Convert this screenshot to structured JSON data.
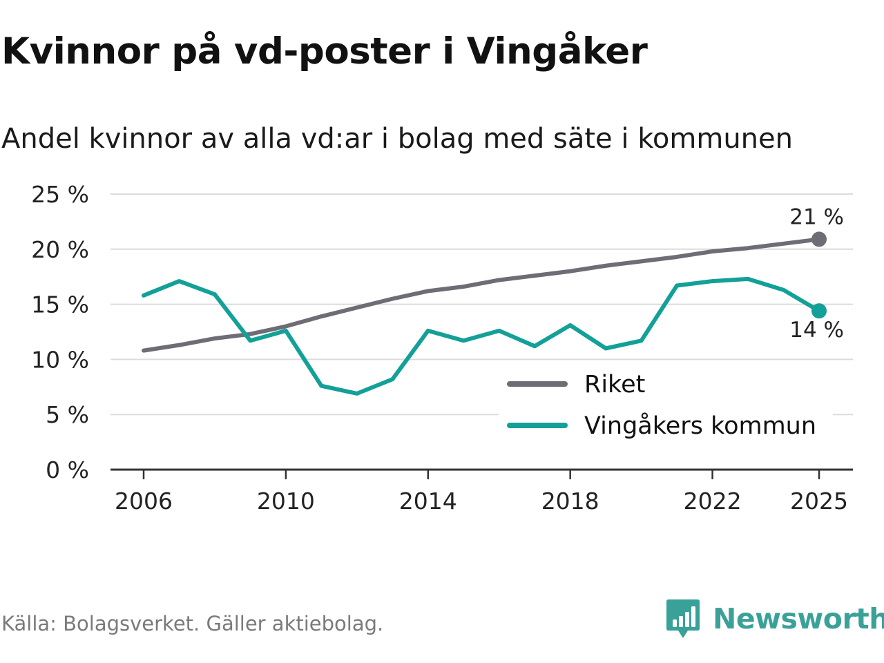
{
  "title": "Kvinnor på vd-poster i Vingåker",
  "subtitle": "Andel kvinnor av alla vd:ar i bolag med säte i kommunen",
  "source": "Källa: Bolagsverket. Gäller aktiebolag.",
  "brand": {
    "name": "Newsworthy",
    "icon": "newsworthy-logo-icon",
    "color": "#3aa198"
  },
  "chart_data": {
    "type": "line",
    "ylim": [
      0,
      25
    ],
    "yticks": [
      0,
      5,
      10,
      15,
      20,
      25
    ],
    "ytick_labels": [
      "0 %",
      "5 %",
      "10 %",
      "15 %",
      "20 %",
      "25 %"
    ],
    "xlim": [
      2006,
      2025
    ],
    "xticks": [
      2006,
      2010,
      2014,
      2018,
      2022,
      2025
    ],
    "xtick_labels": [
      "2006",
      "2010",
      "2014",
      "2018",
      "2022",
      "2025"
    ],
    "grid": true,
    "legend_position": "bottom-right",
    "x": [
      2006,
      2007,
      2008,
      2009,
      2010,
      2011,
      2012,
      2013,
      2014,
      2015,
      2016,
      2017,
      2018,
      2019,
      2020,
      2021,
      2022,
      2023,
      2024,
      2025
    ],
    "series": [
      {
        "name": "Riket",
        "color": "#6e6d75",
        "end_label": "21 %",
        "values": [
          10.8,
          11.3,
          11.9,
          12.3,
          13.0,
          13.9,
          14.7,
          15.5,
          16.2,
          16.6,
          17.2,
          17.6,
          18.0,
          18.5,
          18.9,
          19.3,
          19.8,
          20.1,
          20.5,
          20.9
        ]
      },
      {
        "name": "Vingåkers kommun",
        "color": "#13a098",
        "end_label": "14 %",
        "values": [
          15.8,
          17.1,
          15.9,
          11.7,
          12.6,
          7.6,
          6.9,
          8.2,
          12.6,
          11.7,
          12.6,
          11.2,
          13.1,
          11.0,
          11.7,
          16.7,
          17.1,
          17.3,
          16.3,
          14.4
        ]
      }
    ]
  }
}
